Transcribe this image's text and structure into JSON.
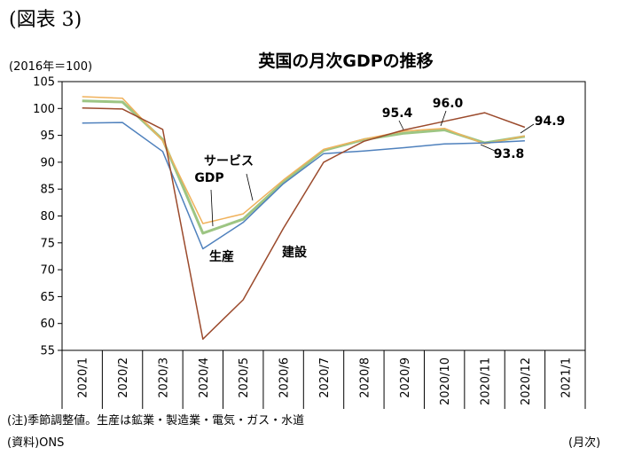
{
  "figure_label": "(図表 3)",
  "unit_label": "(2016年＝100)",
  "note": "(注)季節調整値。生産は鉱業・製造業・電気・ガス・水道",
  "source": "(資料)ONS",
  "x_unit": "(月次)",
  "chart_data": {
    "type": "line",
    "title": "英国の月次GDPの推移",
    "xlabel": "",
    "ylabel": "",
    "ylim": [
      55,
      105
    ],
    "yticks": [
      55,
      60,
      65,
      70,
      75,
      80,
      85,
      90,
      95,
      100,
      105
    ],
    "grid": false,
    "categories": [
      "2020/1",
      "2020/2",
      "2020/3",
      "2020/4",
      "2020/5",
      "2020/6",
      "2020/7",
      "2020/8",
      "2020/9",
      "2020/10",
      "2020/11",
      "2020/12",
      "2021/1"
    ],
    "series": [
      {
        "name": "GDP",
        "color": "#9dc583",
        "values": [
          101.4,
          101.2,
          94.2,
          76.8,
          79.4,
          86.3,
          92.2,
          94.2,
          95.4,
          96.0,
          93.6,
          94.8,
          null
        ]
      },
      {
        "name": "サービス",
        "color": "#f0b25c",
        "values": [
          102.2,
          101.9,
          94.0,
          78.6,
          80.4,
          86.7,
          92.4,
          94.3,
          95.8,
          96.3,
          93.4,
          94.9,
          null
        ]
      },
      {
        "name": "生産",
        "color": "#4f81bd",
        "values": [
          97.3,
          97.4,
          92.0,
          73.9,
          78.8,
          86.0,
          91.6,
          92.1,
          92.7,
          93.4,
          93.6,
          94.0,
          null
        ]
      },
      {
        "name": "建設",
        "color": "#9b4a2c",
        "values": [
          100.1,
          99.9,
          96.1,
          57.1,
          64.4,
          77.7,
          90.0,
          93.9,
          96.0,
          97.6,
          99.2,
          96.5,
          null
        ]
      }
    ],
    "annotations": [
      {
        "text": "95.4"
      },
      {
        "text": "96.0"
      },
      {
        "text": "94.9"
      },
      {
        "text": "93.8"
      }
    ]
  }
}
